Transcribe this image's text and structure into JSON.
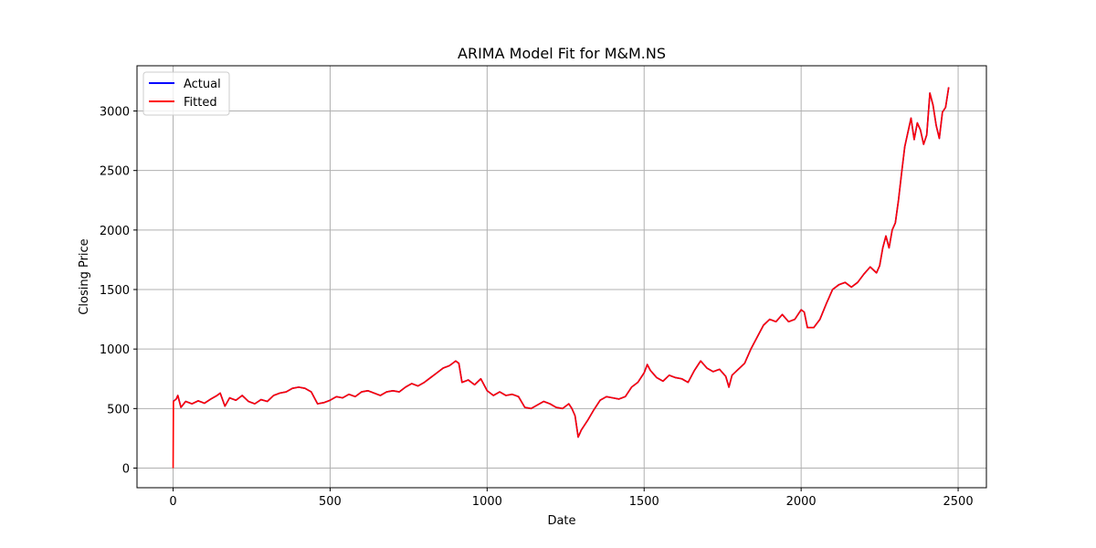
{
  "chart_data": {
    "type": "line",
    "title": "ARIMA Model Fit for M&M.NS",
    "xlabel": "Date",
    "ylabel": "Closing Price",
    "xlim": [
      -115,
      2590
    ],
    "ylim": [
      -165,
      3380
    ],
    "xticks": [
      0,
      500,
      1000,
      1500,
      2000,
      2500
    ],
    "yticks": [
      0,
      500,
      1000,
      1500,
      2000,
      2500,
      3000
    ],
    "grid": true,
    "legend_position": "top-left",
    "series": [
      {
        "name": "Actual",
        "color": "#0000ff",
        "points": [
          [
            0,
            560
          ],
          [
            10,
            580
          ],
          [
            15,
            610
          ],
          [
            25,
            510
          ],
          [
            40,
            560
          ],
          [
            60,
            540
          ],
          [
            80,
            565
          ],
          [
            100,
            545
          ],
          [
            120,
            580
          ],
          [
            140,
            610
          ],
          [
            150,
            630
          ],
          [
            165,
            520
          ],
          [
            180,
            590
          ],
          [
            200,
            570
          ],
          [
            220,
            610
          ],
          [
            240,
            560
          ],
          [
            260,
            540
          ],
          [
            280,
            575
          ],
          [
            300,
            560
          ],
          [
            320,
            610
          ],
          [
            340,
            630
          ],
          [
            360,
            640
          ],
          [
            380,
            670
          ],
          [
            400,
            680
          ],
          [
            420,
            670
          ],
          [
            440,
            640
          ],
          [
            460,
            540
          ],
          [
            480,
            550
          ],
          [
            500,
            570
          ],
          [
            520,
            600
          ],
          [
            540,
            590
          ],
          [
            560,
            620
          ],
          [
            580,
            600
          ],
          [
            600,
            640
          ],
          [
            620,
            650
          ],
          [
            640,
            630
          ],
          [
            660,
            610
          ],
          [
            680,
            640
          ],
          [
            700,
            650
          ],
          [
            720,
            640
          ],
          [
            740,
            680
          ],
          [
            760,
            710
          ],
          [
            780,
            690
          ],
          [
            800,
            720
          ],
          [
            820,
            760
          ],
          [
            840,
            800
          ],
          [
            860,
            840
          ],
          [
            880,
            860
          ],
          [
            900,
            900
          ],
          [
            910,
            880
          ],
          [
            920,
            720
          ],
          [
            940,
            740
          ],
          [
            960,
            700
          ],
          [
            980,
            750
          ],
          [
            1000,
            650
          ],
          [
            1020,
            610
          ],
          [
            1040,
            640
          ],
          [
            1060,
            610
          ],
          [
            1080,
            620
          ],
          [
            1100,
            600
          ],
          [
            1120,
            510
          ],
          [
            1140,
            500
          ],
          [
            1160,
            530
          ],
          [
            1180,
            560
          ],
          [
            1200,
            540
          ],
          [
            1220,
            510
          ],
          [
            1240,
            500
          ],
          [
            1260,
            540
          ],
          [
            1270,
            500
          ],
          [
            1280,
            440
          ],
          [
            1290,
            260
          ],
          [
            1300,
            320
          ],
          [
            1320,
            400
          ],
          [
            1340,
            490
          ],
          [
            1360,
            570
          ],
          [
            1380,
            600
          ],
          [
            1400,
            590
          ],
          [
            1420,
            580
          ],
          [
            1440,
            600
          ],
          [
            1460,
            680
          ],
          [
            1480,
            720
          ],
          [
            1500,
            800
          ],
          [
            1510,
            870
          ],
          [
            1520,
            820
          ],
          [
            1540,
            760
          ],
          [
            1560,
            730
          ],
          [
            1580,
            780
          ],
          [
            1600,
            760
          ],
          [
            1620,
            750
          ],
          [
            1640,
            720
          ],
          [
            1660,
            820
          ],
          [
            1680,
            900
          ],
          [
            1700,
            840
          ],
          [
            1720,
            810
          ],
          [
            1740,
            830
          ],
          [
            1760,
            770
          ],
          [
            1770,
            680
          ],
          [
            1780,
            780
          ],
          [
            1800,
            830
          ],
          [
            1820,
            880
          ],
          [
            1840,
            1000
          ],
          [
            1860,
            1100
          ],
          [
            1880,
            1200
          ],
          [
            1900,
            1250
          ],
          [
            1920,
            1230
          ],
          [
            1940,
            1290
          ],
          [
            1960,
            1230
          ],
          [
            1980,
            1250
          ],
          [
            2000,
            1330
          ],
          [
            2010,
            1310
          ],
          [
            2020,
            1180
          ],
          [
            2040,
            1180
          ],
          [
            2060,
            1250
          ],
          [
            2080,
            1380
          ],
          [
            2100,
            1500
          ],
          [
            2120,
            1540
          ],
          [
            2140,
            1560
          ],
          [
            2160,
            1520
          ],
          [
            2180,
            1560
          ],
          [
            2200,
            1630
          ],
          [
            2220,
            1690
          ],
          [
            2240,
            1640
          ],
          [
            2250,
            1700
          ],
          [
            2260,
            1850
          ],
          [
            2270,
            1950
          ],
          [
            2280,
            1850
          ],
          [
            2290,
            2000
          ],
          [
            2300,
            2060
          ],
          [
            2310,
            2250
          ],
          [
            2320,
            2480
          ],
          [
            2330,
            2700
          ],
          [
            2340,
            2820
          ],
          [
            2350,
            2940
          ],
          [
            2360,
            2760
          ],
          [
            2370,
            2900
          ],
          [
            2380,
            2840
          ],
          [
            2390,
            2720
          ],
          [
            2400,
            2800
          ],
          [
            2410,
            3150
          ],
          [
            2420,
            3050
          ],
          [
            2430,
            2880
          ],
          [
            2440,
            2770
          ],
          [
            2450,
            2990
          ],
          [
            2460,
            3030
          ],
          [
            2470,
            3200
          ]
        ]
      },
      {
        "name": "Fitted",
        "color": "#ff0000",
        "points": [
          [
            0,
            0
          ],
          [
            1,
            560
          ],
          [
            10,
            580
          ],
          [
            15,
            610
          ],
          [
            25,
            510
          ],
          [
            40,
            560
          ],
          [
            60,
            540
          ],
          [
            80,
            565
          ],
          [
            100,
            545
          ],
          [
            120,
            580
          ],
          [
            140,
            610
          ],
          [
            150,
            630
          ],
          [
            165,
            520
          ],
          [
            180,
            590
          ],
          [
            200,
            570
          ],
          [
            220,
            610
          ],
          [
            240,
            560
          ],
          [
            260,
            540
          ],
          [
            280,
            575
          ],
          [
            300,
            560
          ],
          [
            320,
            610
          ],
          [
            340,
            630
          ],
          [
            360,
            640
          ],
          [
            380,
            670
          ],
          [
            400,
            680
          ],
          [
            420,
            670
          ],
          [
            440,
            640
          ],
          [
            460,
            540
          ],
          [
            480,
            550
          ],
          [
            500,
            570
          ],
          [
            520,
            600
          ],
          [
            540,
            590
          ],
          [
            560,
            620
          ],
          [
            580,
            600
          ],
          [
            600,
            640
          ],
          [
            620,
            650
          ],
          [
            640,
            630
          ],
          [
            660,
            610
          ],
          [
            680,
            640
          ],
          [
            700,
            650
          ],
          [
            720,
            640
          ],
          [
            740,
            680
          ],
          [
            760,
            710
          ],
          [
            780,
            690
          ],
          [
            800,
            720
          ],
          [
            820,
            760
          ],
          [
            840,
            800
          ],
          [
            860,
            840
          ],
          [
            880,
            860
          ],
          [
            900,
            900
          ],
          [
            910,
            880
          ],
          [
            920,
            720
          ],
          [
            940,
            740
          ],
          [
            960,
            700
          ],
          [
            980,
            750
          ],
          [
            1000,
            650
          ],
          [
            1020,
            610
          ],
          [
            1040,
            640
          ],
          [
            1060,
            610
          ],
          [
            1080,
            620
          ],
          [
            1100,
            600
          ],
          [
            1120,
            510
          ],
          [
            1140,
            500
          ],
          [
            1160,
            530
          ],
          [
            1180,
            560
          ],
          [
            1200,
            540
          ],
          [
            1220,
            510
          ],
          [
            1240,
            500
          ],
          [
            1260,
            540
          ],
          [
            1270,
            500
          ],
          [
            1280,
            440
          ],
          [
            1290,
            260
          ],
          [
            1300,
            320
          ],
          [
            1320,
            400
          ],
          [
            1340,
            490
          ],
          [
            1360,
            570
          ],
          [
            1380,
            600
          ],
          [
            1400,
            590
          ],
          [
            1420,
            580
          ],
          [
            1440,
            600
          ],
          [
            1460,
            680
          ],
          [
            1480,
            720
          ],
          [
            1500,
            800
          ],
          [
            1510,
            870
          ],
          [
            1520,
            820
          ],
          [
            1540,
            760
          ],
          [
            1560,
            730
          ],
          [
            1580,
            780
          ],
          [
            1600,
            760
          ],
          [
            1620,
            750
          ],
          [
            1640,
            720
          ],
          [
            1660,
            820
          ],
          [
            1680,
            900
          ],
          [
            1700,
            840
          ],
          [
            1720,
            810
          ],
          [
            1740,
            830
          ],
          [
            1760,
            770
          ],
          [
            1770,
            680
          ],
          [
            1780,
            780
          ],
          [
            1800,
            830
          ],
          [
            1820,
            880
          ],
          [
            1840,
            1000
          ],
          [
            1860,
            1100
          ],
          [
            1880,
            1200
          ],
          [
            1900,
            1250
          ],
          [
            1920,
            1230
          ],
          [
            1940,
            1290
          ],
          [
            1960,
            1230
          ],
          [
            1980,
            1250
          ],
          [
            2000,
            1330
          ],
          [
            2010,
            1310
          ],
          [
            2020,
            1180
          ],
          [
            2040,
            1180
          ],
          [
            2060,
            1250
          ],
          [
            2080,
            1380
          ],
          [
            2100,
            1500
          ],
          [
            2120,
            1540
          ],
          [
            2140,
            1560
          ],
          [
            2160,
            1520
          ],
          [
            2180,
            1560
          ],
          [
            2200,
            1630
          ],
          [
            2220,
            1690
          ],
          [
            2240,
            1640
          ],
          [
            2250,
            1700
          ],
          [
            2260,
            1850
          ],
          [
            2270,
            1950
          ],
          [
            2280,
            1850
          ],
          [
            2290,
            2000
          ],
          [
            2300,
            2060
          ],
          [
            2310,
            2250
          ],
          [
            2320,
            2480
          ],
          [
            2330,
            2700
          ],
          [
            2340,
            2820
          ],
          [
            2350,
            2940
          ],
          [
            2360,
            2760
          ],
          [
            2370,
            2900
          ],
          [
            2380,
            2840
          ],
          [
            2390,
            2720
          ],
          [
            2400,
            2800
          ],
          [
            2410,
            3150
          ],
          [
            2420,
            3050
          ],
          [
            2430,
            2880
          ],
          [
            2440,
            2770
          ],
          [
            2450,
            2990
          ],
          [
            2460,
            3030
          ],
          [
            2470,
            3200
          ]
        ]
      }
    ]
  }
}
